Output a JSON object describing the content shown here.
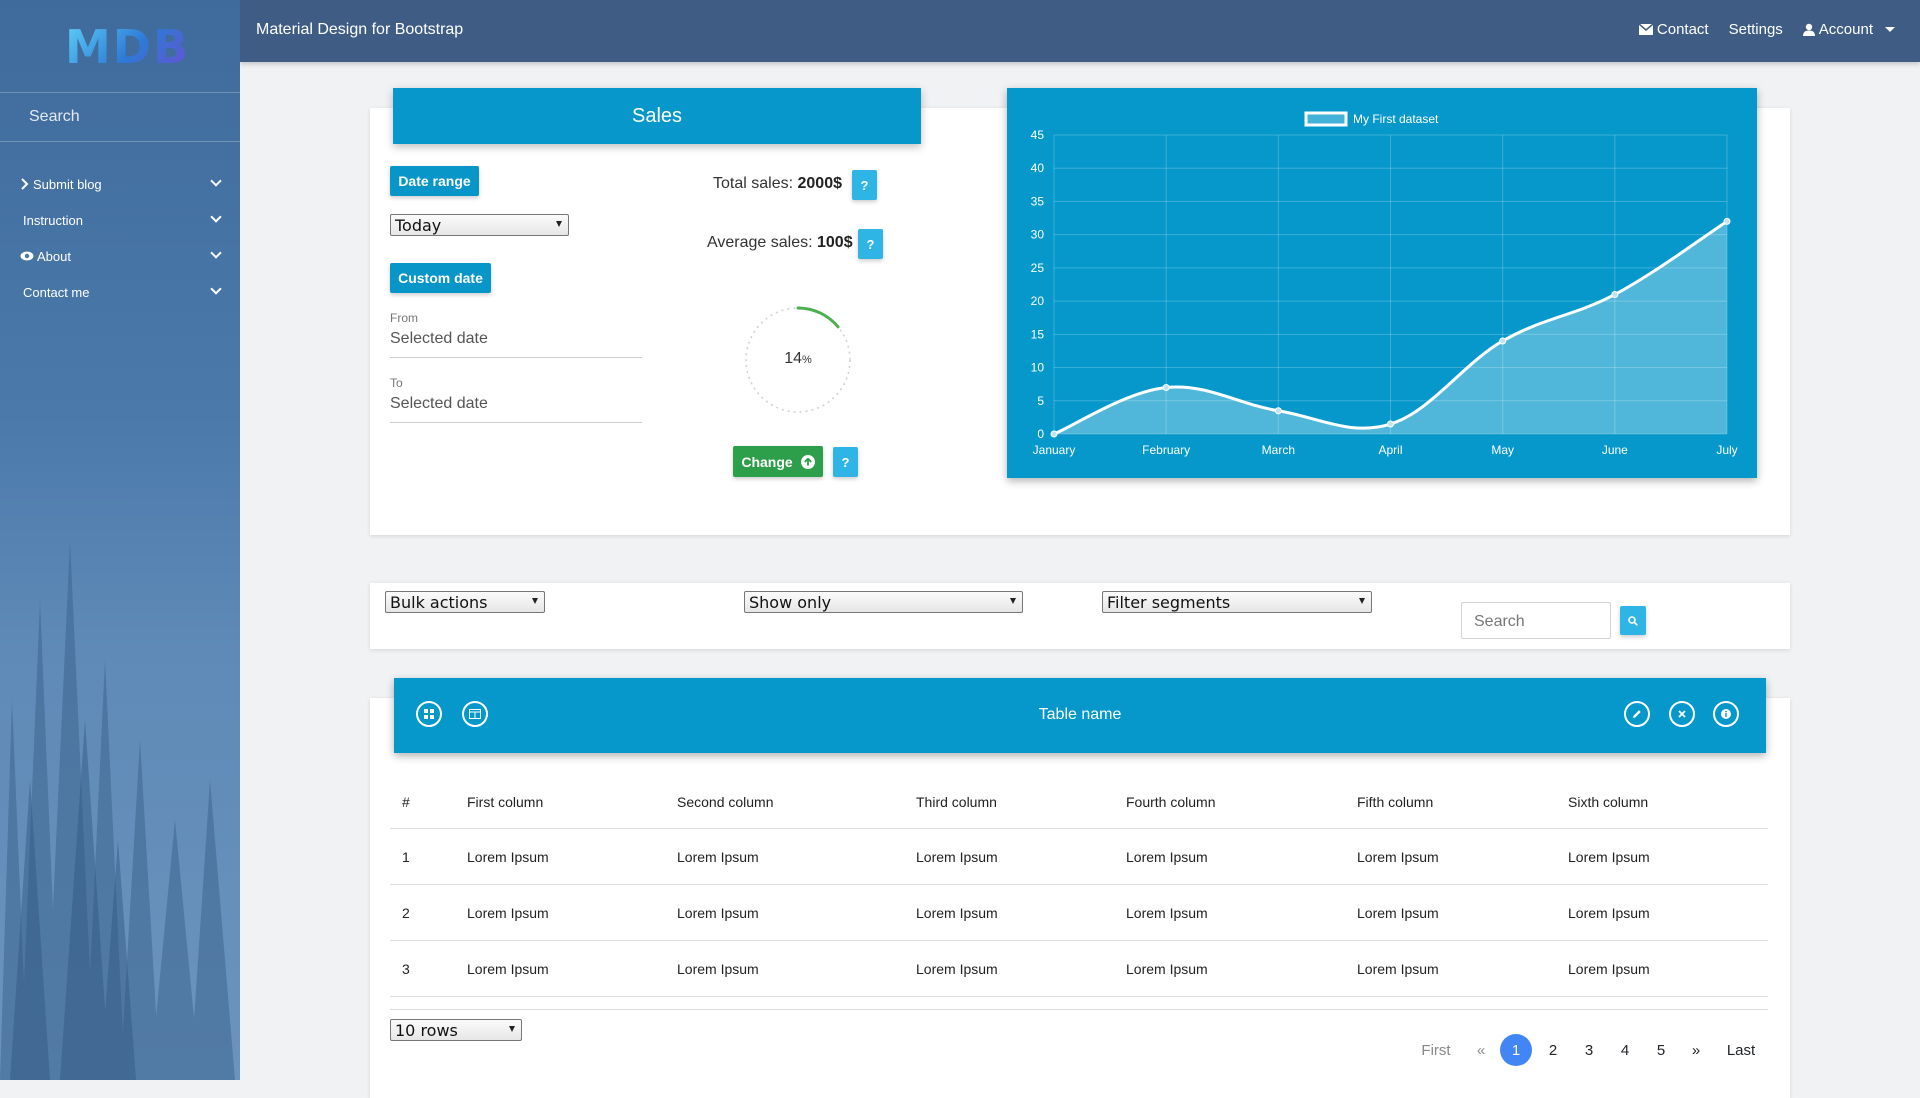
{
  "sidebar": {
    "logo": "MDB",
    "search_placeholder": "Search",
    "items": [
      {
        "label": "Submit blog",
        "icon": "chevron-right-icon"
      },
      {
        "label": "Instruction",
        "icon": ""
      },
      {
        "label": "About",
        "icon": "eye-icon"
      },
      {
        "label": "Contact me",
        "icon": ""
      }
    ]
  },
  "topnav": {
    "brand": "Material Design for Bootstrap",
    "contact": "Contact",
    "settings": "Settings",
    "account": "Account"
  },
  "sales": {
    "title": "Sales",
    "date_range_label": "Date range",
    "period_value": "Today",
    "custom_date_label": "Custom date",
    "from_label": "From",
    "from_value": "Selected date",
    "to_label": "To",
    "to_value": "Selected date",
    "total_label": "Total sales:",
    "total_value": "2000$",
    "average_label": "Average sales:",
    "average_value": "100$",
    "help_label": "?",
    "progress_value": "14",
    "progress_unit": "%",
    "progress_fraction": 0.14,
    "change_label": "Change"
  },
  "chart_data": {
    "type": "line",
    "categories": [
      "January",
      "February",
      "March",
      "April",
      "May",
      "June",
      "July"
    ],
    "series": [
      {
        "name": "My First dataset",
        "values": [
          0,
          7,
          3.5,
          1.5,
          14,
          21,
          32
        ]
      }
    ],
    "ylim": [
      0,
      45
    ],
    "yticks": [
      0,
      5,
      10,
      15,
      20,
      25,
      30,
      35,
      40,
      45
    ],
    "grid": true,
    "legend": "top",
    "colors": {
      "background": "#0698cb",
      "line": "#ffffff",
      "fill": "rgba(255,255,255,0.3)"
    }
  },
  "filters": {
    "bulk_actions": "Bulk actions",
    "show_only": "Show only",
    "filter_segments": "Filter segments",
    "search_placeholder": "Search"
  },
  "table": {
    "title": "Table name",
    "columns": [
      "#",
      "First column",
      "Second column",
      "Third column",
      "Fourth column",
      "Fifth column",
      "Sixth column"
    ],
    "rows": [
      [
        "1",
        "Lorem Ipsum",
        "Lorem Ipsum",
        "Lorem Ipsum",
        "Lorem Ipsum",
        "Lorem Ipsum",
        "Lorem Ipsum"
      ],
      [
        "2",
        "Lorem Ipsum",
        "Lorem Ipsum",
        "Lorem Ipsum",
        "Lorem Ipsum",
        "Lorem Ipsum",
        "Lorem Ipsum"
      ],
      [
        "3",
        "Lorem Ipsum",
        "Lorem Ipsum",
        "Lorem Ipsum",
        "Lorem Ipsum",
        "Lorem Ipsum",
        "Lorem Ipsum"
      ]
    ],
    "rows_select": "10 rows"
  },
  "pagination": {
    "first": "First",
    "prev": "«",
    "pages": [
      "1",
      "2",
      "3",
      "4",
      "5"
    ],
    "next": "»",
    "last": "Last",
    "active": "1"
  }
}
